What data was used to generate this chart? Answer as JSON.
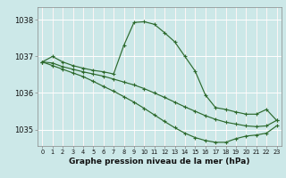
{
  "title": "Graphe pression niveau de la mer (hPa)",
  "bg_color": "#cce8e8",
  "grid_color": "#ffffff",
  "line_color": "#2d6a2d",
  "xlim": [
    -0.5,
    23.5
  ],
  "ylim": [
    1034.55,
    1038.35
  ],
  "yticks": [
    1035,
    1036,
    1037,
    1038
  ],
  "xticks": [
    0,
    1,
    2,
    3,
    4,
    5,
    6,
    7,
    8,
    9,
    10,
    11,
    12,
    13,
    14,
    15,
    16,
    17,
    18,
    19,
    20,
    21,
    22,
    23
  ],
  "series": [
    {
      "x": [
        0,
        1,
        2,
        3,
        4,
        5,
        6,
        7,
        8,
        9,
        10,
        11,
        12,
        13,
        14,
        15,
        16,
        17,
        18,
        19,
        20,
        21,
        22,
        23
      ],
      "y": [
        1036.85,
        1037.0,
        1036.85,
        1036.75,
        1036.68,
        1036.62,
        1036.58,
        1036.52,
        1037.3,
        1037.93,
        1037.95,
        1037.88,
        1037.65,
        1037.4,
        1037.0,
        1036.6,
        1035.95,
        1035.6,
        1035.55,
        1035.48,
        1035.42,
        1035.42,
        1035.55,
        1035.25
      ]
    },
    {
      "x": [
        0,
        1,
        2,
        3,
        4,
        5,
        6,
        7,
        8,
        9,
        10,
        11,
        12,
        13,
        14,
        15,
        16,
        17,
        18,
        19,
        20,
        21,
        22,
        23
      ],
      "y": [
        1036.85,
        1036.82,
        1036.72,
        1036.65,
        1036.58,
        1036.52,
        1036.46,
        1036.38,
        1036.3,
        1036.22,
        1036.12,
        1036.0,
        1035.88,
        1035.75,
        1035.62,
        1035.5,
        1035.38,
        1035.28,
        1035.2,
        1035.15,
        1035.1,
        1035.08,
        1035.1,
        1035.25
      ]
    },
    {
      "x": [
        0,
        1,
        2,
        3,
        4,
        5,
        6,
        7,
        8,
        9,
        10,
        11,
        12,
        13,
        14,
        15,
        16,
        17,
        18,
        19,
        20,
        21,
        22,
        23
      ],
      "y": [
        1036.85,
        1036.75,
        1036.65,
        1036.55,
        1036.45,
        1036.32,
        1036.18,
        1036.05,
        1035.9,
        1035.75,
        1035.58,
        1035.4,
        1035.22,
        1035.05,
        1034.9,
        1034.78,
        1034.7,
        1034.65,
        1034.65,
        1034.75,
        1034.82,
        1034.85,
        1034.9,
        1035.1
      ]
    }
  ]
}
